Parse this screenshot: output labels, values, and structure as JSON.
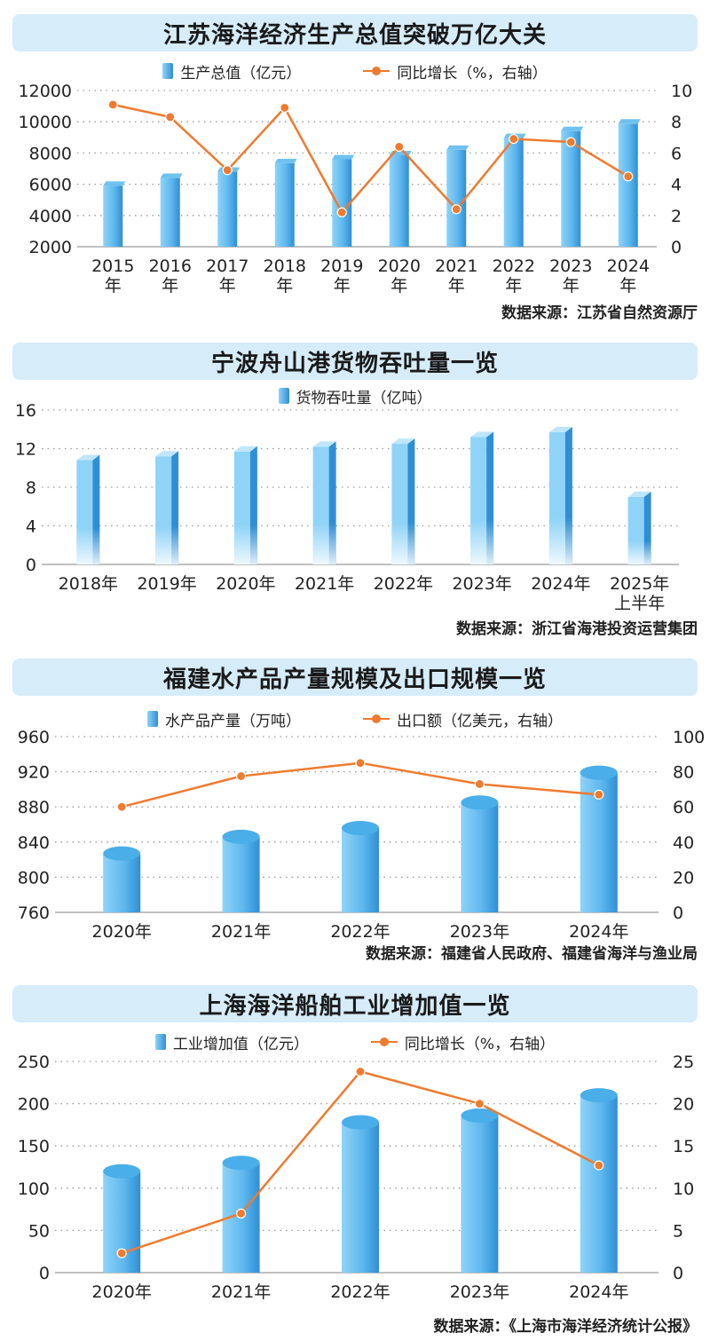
{
  "colors": {
    "bar_light": "#8fd3f7",
    "bar_dark": "#2f8fd5",
    "line": "#f07a2e",
    "title_bg": "#d6ecf9"
  },
  "chart_data": [
    {
      "type": "bar",
      "title": "江苏海洋经济生产总值突破万亿大关",
      "legend_bar": "生产总值（亿元）",
      "legend_line": "同比增长（%，右轴）",
      "categories": [
        "2015\n年",
        "2016\n年",
        "2017\n年",
        "2018\n年",
        "2019\n年",
        "2020\n年",
        "2021\n年",
        "2022\n年",
        "2023\n年",
        "2024\n年"
      ],
      "series": [
        {
          "name": "生产总值（亿元）",
          "kind": "bar",
          "values": [
            5900,
            6400,
            6800,
            7350,
            7600,
            7850,
            8200,
            8950,
            9400,
            9880
          ]
        },
        {
          "name": "同比增长（%，右轴）",
          "kind": "line",
          "values": [
            9.1,
            8.3,
            4.9,
            8.9,
            2.2,
            6.4,
            2.4,
            6.9,
            6.7,
            4.5
          ]
        }
      ],
      "ylim": [
        2000,
        12000
      ],
      "yticks": [
        2000,
        4000,
        6000,
        8000,
        10000,
        12000
      ],
      "y2lim": [
        0,
        10
      ],
      "y2ticks": [
        0,
        2,
        4,
        6,
        8,
        10
      ],
      "source": "数据来源：江苏省自然资源厅"
    },
    {
      "type": "bar",
      "title": "宁波舟山港货物吞吐量一览",
      "legend_bar": "货物吞吐量（亿吨）",
      "categories": [
        "2018年",
        "2019年",
        "2020年",
        "2021年",
        "2022年",
        "2023年",
        "2024年",
        "2025年\n上半年"
      ],
      "series": [
        {
          "name": "货物吞吐量（亿吨）",
          "kind": "bar",
          "values": [
            10.8,
            11.2,
            11.7,
            12.2,
            12.5,
            13.2,
            13.7,
            7.0
          ]
        }
      ],
      "ylim": [
        0,
        16
      ],
      "yticks": [
        0,
        4,
        8,
        12,
        16
      ],
      "source": "数据来源：浙江省海港投资运营集团"
    },
    {
      "type": "bar",
      "title": "福建水产品产量规模及出口规模一览",
      "legend_bar": "水产品产量（万吨）",
      "legend_line": "出口额（亿美元，右轴）",
      "categories": [
        "2020年",
        "2021年",
        "2022年",
        "2023年",
        "2024年"
      ],
      "series": [
        {
          "name": "水产品产量（万吨）",
          "kind": "bar",
          "values": [
            827,
            846,
            856,
            885,
            919
          ]
        },
        {
          "name": "出口额（亿美元，右轴）",
          "kind": "line",
          "values": [
            60,
            77.5,
            85,
            73,
            67
          ]
        }
      ],
      "ylim": [
        760,
        960
      ],
      "yticks": [
        760,
        800,
        840,
        880,
        920,
        960
      ],
      "y2lim": [
        0,
        100
      ],
      "y2ticks": [
        0,
        20,
        40,
        60,
        80,
        100
      ],
      "source": "数据来源：福建省人民政府、福建省海洋与渔业局"
    },
    {
      "type": "bar",
      "title": "上海海洋船舶工业增加值一览",
      "legend_bar": "工业增加值（亿元）",
      "legend_line": "同比增长（%，右轴）",
      "categories": [
        "2020年",
        "2021年",
        "2022年",
        "2023年",
        "2024年"
      ],
      "series": [
        {
          "name": "工业增加值（亿元）",
          "kind": "bar",
          "values": [
            120,
            130,
            178,
            186,
            210
          ]
        },
        {
          "name": "同比增长（%，右轴）",
          "kind": "line",
          "values": [
            2.3,
            7.0,
            23.8,
            20.0,
            12.7
          ]
        }
      ],
      "ylim": [
        0,
        250
      ],
      "yticks": [
        0,
        50,
        100,
        150,
        200,
        250
      ],
      "y2lim": [
        0,
        25
      ],
      "y2ticks": [
        0,
        5,
        10,
        15,
        20,
        25
      ],
      "source": "数据来源：《上海市海洋经济统计公报》"
    }
  ]
}
